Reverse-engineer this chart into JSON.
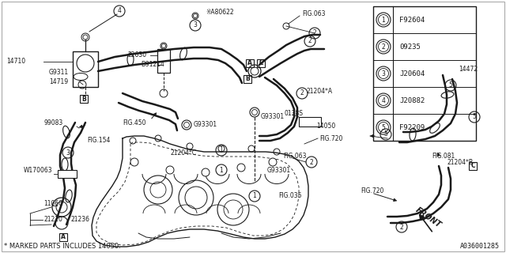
{
  "background_color": "#f5f5f0",
  "line_color": "#333333",
  "legend_items": [
    {
      "num": "1",
      "code": "F92604"
    },
    {
      "num": "2",
      "code": "09235"
    },
    {
      "num": "3",
      "code": "J20604"
    },
    {
      "num": "4",
      "code": "J20882"
    },
    {
      "num": "5",
      "code": "F92209"
    }
  ],
  "bottom_text": "* MARKED PARTS INCLUDES 14050.",
  "diagram_id": "A036001285",
  "fig_w": 640,
  "fig_h": 320
}
